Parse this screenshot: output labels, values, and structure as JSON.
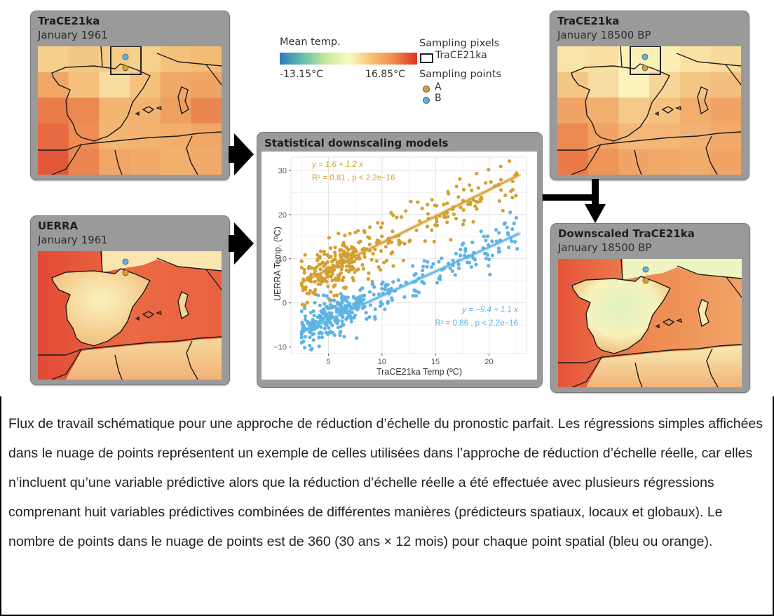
{
  "panels": {
    "trace_1961": {
      "title": "TraCE21ka",
      "subtitle": "January 1961"
    },
    "uerra_1961": {
      "title": "UERRA",
      "subtitle": "January 1961"
    },
    "trace_18500": {
      "title": "TraCE21ka",
      "subtitle": "January 18500 BP"
    },
    "downscaled": {
      "title": "Downscaled TraCE21ka",
      "subtitle": "January 18500 BP"
    },
    "models": {
      "title": "Statistical downscaling models"
    }
  },
  "legend": {
    "colorbar_title": "Mean temp.",
    "min_label": "-13.15°C",
    "max_label": "16.85°C",
    "pixels_title": "Sampling pixels",
    "pixels_item": "TraCE21ka",
    "points_title": "Sampling points",
    "point_a": "A",
    "point_b": "B",
    "colors": {
      "point_a": "#d4a031",
      "point_b": "#5fb3e3"
    }
  },
  "chart_data": {
    "type": "scatter",
    "title": "Statistical downscaling models",
    "xlabel": "TraCE21ka Temp (ºC)",
    "ylabel": "UERRA Temp. (ºC)",
    "xlim": [
      1.5,
      23.5
    ],
    "ylim": [
      -11.5,
      33
    ],
    "x_ticks": [
      5,
      10,
      15,
      20
    ],
    "y_ticks": [
      -10,
      0,
      10,
      20,
      30
    ],
    "x_tick_labels": [
      "5",
      "10",
      "15",
      "20"
    ],
    "y_tick_labels": [
      "−10",
      "0",
      "10",
      "20",
      "30"
    ],
    "grid": true,
    "points_per_series": 360,
    "series": [
      {
        "name": "A",
        "color": "#d4a031",
        "intercept": 1.6,
        "slope": 1.2,
        "equation": "y = 1.6 + 1.2 x",
        "stats": "R² = 0.81 , p < 2.2e−16",
        "x_range": [
          2.5,
          22.8
        ],
        "annotation_position": "top-left"
      },
      {
        "name": "B",
        "color": "#5fb3e3",
        "intercept": -9.4,
        "slope": 1.1,
        "equation": "y = −9.4 + 1.1 x",
        "stats": "R² = 0.86 , p < 2.2e−16",
        "x_range": [
          2.5,
          22.8
        ],
        "annotation_position": "bottom-right"
      }
    ]
  },
  "caption": "Flux de travail schématique pour une approche de réduction d’échelle du pronostic parfait. Les régressions simples affichées dans le nuage de points représentent un exemple de celles utilisées dans l’approche de réduction d’échelle réelle, car elles n’incluent qu’une variable prédictive alors que la réduction d’échelle réelle a été effectuée avec plusieurs régressions comprenant huit variables prédictives combinées de différentes manières (prédicteurs spatiaux, locaux et globaux). Le nombre de points dans le nuage de points est de 360 (30 ans × 12 mois) pour chaque point spatial (bleu ou orange)."
}
